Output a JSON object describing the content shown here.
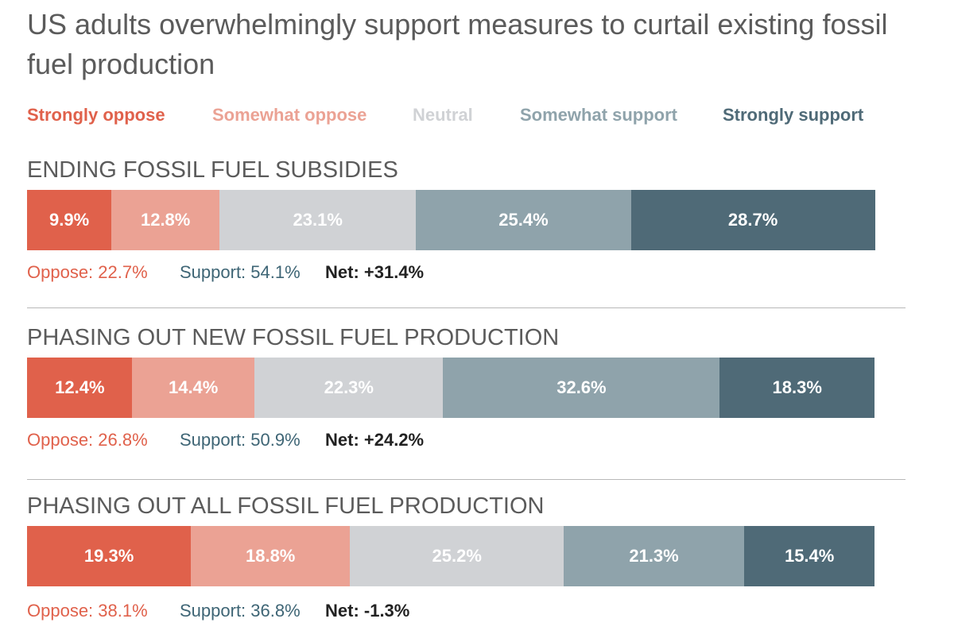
{
  "chart_data": {
    "type": "bar",
    "orientation": "horizontal-stacked-100",
    "title": "US adults overwhelmingly support measures to curtail existing fossil fuel production",
    "legend": [
      {
        "name": "Strongly oppose",
        "color": "#e0614b"
      },
      {
        "name": "Somewhat oppose",
        "color": "#eba294"
      },
      {
        "name": "Neutral",
        "color": "#d0d2d5"
      },
      {
        "name": "Somewhat support",
        "color": "#8fa3ab"
      },
      {
        "name": "Strongly support",
        "color": "#4f6a77"
      }
    ],
    "categories": [
      "Strongly oppose",
      "Somewhat oppose",
      "Neutral",
      "Somewhat support",
      "Strongly support"
    ],
    "series": [
      {
        "name": "ENDING FOSSIL FUEL SUBSIDIES",
        "values": [
          9.9,
          12.8,
          23.1,
          25.4,
          28.7
        ],
        "labels": [
          "9.9%",
          "12.8%",
          "23.1%",
          "25.4%",
          "28.7%"
        ],
        "oppose": "Oppose: 22.7%",
        "support": "Support: 54.1%",
        "net": "Net: +31.4%"
      },
      {
        "name": "PHASING OUT NEW FOSSIL FUEL PRODUCTION",
        "values": [
          12.4,
          14.4,
          22.3,
          32.6,
          18.3
        ],
        "labels": [
          "12.4%",
          "14.4%",
          "22.3%",
          "32.6%",
          "18.3%"
        ],
        "oppose": "Oppose: 26.8%",
        "support": "Support: 50.9%",
        "net": "Net: +24.2%"
      },
      {
        "name": "PHASING OUT ALL FOSSIL FUEL PRODUCTION",
        "values": [
          19.3,
          18.8,
          25.2,
          21.3,
          15.4
        ],
        "labels": [
          "19.3%",
          "18.8%",
          "25.2%",
          "21.3%",
          "15.4%"
        ],
        "oppose": "Oppose: 38.1%",
        "support": "Support: 36.8%",
        "net": "Net: -1.3%"
      }
    ],
    "oppose_color": "#e0614b",
    "support_color": "#3e6575"
  }
}
